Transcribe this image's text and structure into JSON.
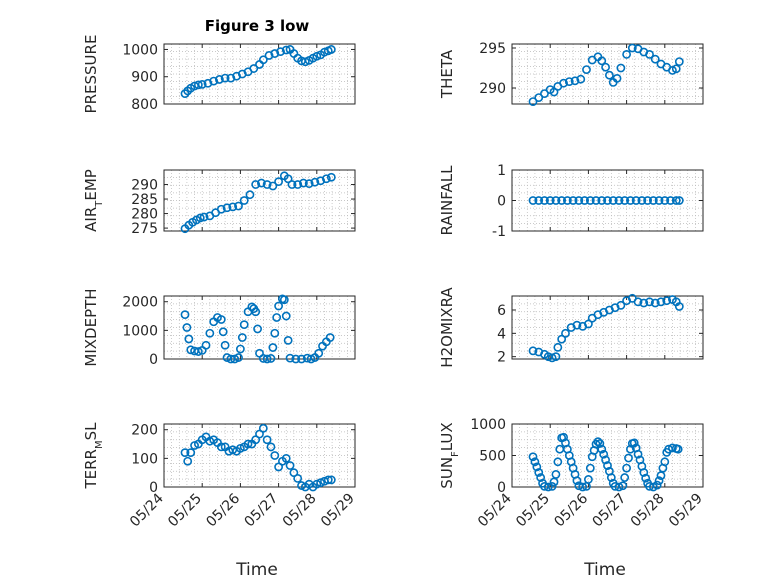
{
  "figure": {
    "title": "Figure 3 low",
    "xlabel": "Time"
  },
  "colors": {
    "marker": "#0072BD",
    "axis": "#262626",
    "grid": "#b8b8b8"
  },
  "xticks": [
    "05/24",
    "05/25",
    "05/26",
    "05/27",
    "05/28",
    "05/29"
  ],
  "chart_data": [
    {
      "type": "scatter",
      "ylabel": "PRESSURE",
      "ylim": [
        800,
        1020
      ],
      "yticks": [
        {
          "v": 800,
          "label": "800"
        },
        {
          "v": 900,
          "label": "900"
        },
        {
          "v": 1000,
          "label": "1000"
        }
      ],
      "xlim": [
        "05/24",
        "05/29"
      ],
      "grid": "on",
      "points": [
        [
          0.55,
          838
        ],
        [
          0.62,
          848
        ],
        [
          0.7,
          858
        ],
        [
          0.8,
          866
        ],
        [
          0.9,
          870
        ],
        [
          1.0,
          872
        ],
        [
          1.15,
          876
        ],
        [
          1.3,
          884
        ],
        [
          1.45,
          890
        ],
        [
          1.6,
          895
        ],
        [
          1.75,
          895
        ],
        [
          1.9,
          902
        ],
        [
          2.05,
          910
        ],
        [
          2.2,
          918
        ],
        [
          2.35,
          930
        ],
        [
          2.5,
          945
        ],
        [
          2.6,
          962
        ],
        [
          2.75,
          978
        ],
        [
          2.9,
          985
        ],
        [
          3.05,
          992
        ],
        [
          3.2,
          998
        ],
        [
          3.3,
          1000
        ],
        [
          3.4,
          985
        ],
        [
          3.5,
          968
        ],
        [
          3.6,
          958
        ],
        [
          3.7,
          955
        ],
        [
          3.8,
          960
        ],
        [
          3.9,
          968
        ],
        [
          4.0,
          975
        ],
        [
          4.1,
          980
        ],
        [
          4.2,
          990
        ],
        [
          4.3,
          995
        ],
        [
          4.38,
          1000
        ]
      ]
    },
    {
      "type": "scatter",
      "ylabel": "THETA",
      "ylim": [
        288,
        295.5
      ],
      "yticks": [
        {
          "v": 290,
          "label": "290"
        },
        {
          "v": 295,
          "label": "295"
        }
      ],
      "xlim": [
        "05/24",
        "05/29"
      ],
      "grid": "on",
      "points": [
        [
          0.55,
          288.3
        ],
        [
          0.7,
          288.8
        ],
        [
          0.85,
          289.3
        ],
        [
          1.0,
          289.8
        ],
        [
          1.1,
          289.5
        ],
        [
          1.2,
          290.2
        ],
        [
          1.35,
          290.6
        ],
        [
          1.5,
          290.8
        ],
        [
          1.65,
          290.9
        ],
        [
          1.8,
          291.1
        ],
        [
          1.95,
          292.3
        ],
        [
          2.1,
          293.5
        ],
        [
          2.25,
          293.9
        ],
        [
          2.35,
          293.4
        ],
        [
          2.45,
          292.6
        ],
        [
          2.55,
          291.6
        ],
        [
          2.65,
          290.7
        ],
        [
          2.75,
          291.2
        ],
        [
          2.85,
          292.5
        ],
        [
          3.0,
          294.2
        ],
        [
          3.15,
          295.0
        ],
        [
          3.3,
          294.9
        ],
        [
          3.45,
          294.5
        ],
        [
          3.6,
          294.2
        ],
        [
          3.75,
          293.6
        ],
        [
          3.9,
          293.0
        ],
        [
          4.05,
          292.6
        ],
        [
          4.2,
          292.2
        ],
        [
          4.3,
          292.4
        ],
        [
          4.38,
          293.3
        ]
      ]
    },
    {
      "type": "scatter",
      "ylabel": "AIR_TEMP",
      "ylim": [
        274,
        295
      ],
      "yticks": [
        {
          "v": 275,
          "label": "275"
        },
        {
          "v": 280,
          "label": "280"
        },
        {
          "v": 285,
          "label": "285"
        },
        {
          "v": 290,
          "label": "290"
        }
      ],
      "xlim": [
        "05/24",
        "05/29"
      ],
      "grid": "on",
      "points": [
        [
          0.55,
          274.8
        ],
        [
          0.65,
          276.0
        ],
        [
          0.75,
          277.0
        ],
        [
          0.85,
          277.8
        ],
        [
          0.95,
          278.5
        ],
        [
          1.05,
          278.8
        ],
        [
          1.2,
          279.2
        ],
        [
          1.35,
          280.3
        ],
        [
          1.5,
          281.5
        ],
        [
          1.65,
          282.0
        ],
        [
          1.8,
          282.3
        ],
        [
          1.95,
          282.6
        ],
        [
          2.1,
          284.5
        ],
        [
          2.25,
          286.5
        ],
        [
          2.4,
          290.0
        ],
        [
          2.55,
          290.5
        ],
        [
          2.7,
          290.0
        ],
        [
          2.85,
          289.5
        ],
        [
          3.0,
          291.0
        ],
        [
          3.15,
          293.0
        ],
        [
          3.25,
          292.0
        ],
        [
          3.35,
          290.0
        ],
        [
          3.5,
          290.0
        ],
        [
          3.65,
          290.5
        ],
        [
          3.8,
          290.3
        ],
        [
          3.95,
          290.8
        ],
        [
          4.1,
          291.3
        ],
        [
          4.25,
          292.0
        ],
        [
          4.38,
          292.5
        ]
      ]
    },
    {
      "type": "scatter",
      "ylabel": "RAINFALL",
      "ylim": [
        -1,
        1
      ],
      "yticks": [
        {
          "v": -1,
          "label": "-1"
        },
        {
          "v": 0,
          "label": "0"
        },
        {
          "v": 1,
          "label": "1"
        }
      ],
      "xlim": [
        "05/24",
        "05/29"
      ],
      "grid": "on",
      "points": [
        [
          0.55,
          0
        ],
        [
          0.7,
          0
        ],
        [
          0.85,
          0
        ],
        [
          1.0,
          0
        ],
        [
          1.15,
          0
        ],
        [
          1.3,
          0
        ],
        [
          1.45,
          0
        ],
        [
          1.6,
          0
        ],
        [
          1.75,
          0
        ],
        [
          1.9,
          0
        ],
        [
          2.05,
          0
        ],
        [
          2.2,
          0
        ],
        [
          2.35,
          0
        ],
        [
          2.5,
          0
        ],
        [
          2.65,
          0
        ],
        [
          2.8,
          0
        ],
        [
          2.95,
          0
        ],
        [
          3.1,
          0
        ],
        [
          3.25,
          0
        ],
        [
          3.4,
          0
        ],
        [
          3.55,
          0
        ],
        [
          3.7,
          0
        ],
        [
          3.85,
          0
        ],
        [
          4.0,
          0
        ],
        [
          4.15,
          0
        ],
        [
          4.3,
          0
        ],
        [
          4.38,
          0
        ]
      ]
    },
    {
      "type": "scatter",
      "ylabel": "MIXDEPTH",
      "ylim": [
        0,
        2200
      ],
      "yticks": [
        {
          "v": 0,
          "label": "0"
        },
        {
          "v": 1000,
          "label": "1000"
        },
        {
          "v": 2000,
          "label": "2000"
        }
      ],
      "xlim": [
        "05/24",
        "05/29"
      ],
      "grid": "on",
      "points": [
        [
          0.55,
          1550
        ],
        [
          0.6,
          1100
        ],
        [
          0.65,
          700
        ],
        [
          0.7,
          320
        ],
        [
          0.8,
          280
        ],
        [
          0.9,
          260
        ],
        [
          1.0,
          300
        ],
        [
          1.1,
          480
        ],
        [
          1.2,
          900
        ],
        [
          1.3,
          1300
        ],
        [
          1.4,
          1450
        ],
        [
          1.5,
          1380
        ],
        [
          1.55,
          950
        ],
        [
          1.6,
          480
        ],
        [
          1.65,
          50
        ],
        [
          1.75,
          0
        ],
        [
          1.85,
          0
        ],
        [
          1.95,
          50
        ],
        [
          2.0,
          350
        ],
        [
          2.05,
          750
        ],
        [
          2.1,
          1200
        ],
        [
          2.2,
          1650
        ],
        [
          2.3,
          1820
        ],
        [
          2.35,
          1760
        ],
        [
          2.4,
          1650
        ],
        [
          2.45,
          1050
        ],
        [
          2.5,
          200
        ],
        [
          2.6,
          20
        ],
        [
          2.7,
          0
        ],
        [
          2.8,
          20
        ],
        [
          2.85,
          400
        ],
        [
          2.9,
          900
        ],
        [
          2.95,
          1450
        ],
        [
          3.0,
          1850
        ],
        [
          3.1,
          2100
        ],
        [
          3.15,
          2070
        ],
        [
          3.2,
          1500
        ],
        [
          3.25,
          650
        ],
        [
          3.3,
          30
        ],
        [
          3.45,
          0
        ],
        [
          3.6,
          0
        ],
        [
          3.75,
          30
        ],
        [
          3.85,
          0
        ],
        [
          3.95,
          50
        ],
        [
          4.05,
          200
        ],
        [
          4.15,
          450
        ],
        [
          4.25,
          600
        ],
        [
          4.35,
          750
        ]
      ]
    },
    {
      "type": "scatter",
      "ylabel": "H2OMIXRA",
      "ylim": [
        1.8,
        7.2
      ],
      "yticks": [
        {
          "v": 2,
          "label": "2"
        },
        {
          "v": 4,
          "label": "4"
        },
        {
          "v": 6,
          "label": "6"
        }
      ],
      "xlim": [
        "05/24",
        "05/29"
      ],
      "grid": "on",
      "points": [
        [
          0.55,
          2.5
        ],
        [
          0.7,
          2.4
        ],
        [
          0.85,
          2.2
        ],
        [
          0.95,
          2.0
        ],
        [
          1.05,
          1.9
        ],
        [
          1.15,
          2.0
        ],
        [
          1.2,
          2.8
        ],
        [
          1.3,
          3.5
        ],
        [
          1.4,
          4.0
        ],
        [
          1.55,
          4.5
        ],
        [
          1.7,
          4.7
        ],
        [
          1.85,
          4.6
        ],
        [
          2.0,
          4.8
        ],
        [
          2.1,
          5.3
        ],
        [
          2.25,
          5.6
        ],
        [
          2.4,
          5.8
        ],
        [
          2.55,
          6.0
        ],
        [
          2.7,
          6.2
        ],
        [
          2.85,
          6.4
        ],
        [
          3.0,
          6.8
        ],
        [
          3.15,
          7.0
        ],
        [
          3.3,
          6.7
        ],
        [
          3.45,
          6.6
        ],
        [
          3.6,
          6.7
        ],
        [
          3.75,
          6.6
        ],
        [
          3.9,
          6.7
        ],
        [
          4.05,
          6.8
        ],
        [
          4.2,
          6.9
        ],
        [
          4.3,
          6.7
        ],
        [
          4.38,
          6.3
        ]
      ]
    },
    {
      "type": "scatter",
      "ylabel": "TERR_MSL",
      "ylim": [
        0,
        220
      ],
      "yticks": [
        {
          "v": 0,
          "label": "0"
        },
        {
          "v": 100,
          "label": "100"
        },
        {
          "v": 200,
          "label": "200"
        }
      ],
      "xlim": [
        "05/24",
        "05/29"
      ],
      "grid": "on",
      "points": [
        [
          0.55,
          120
        ],
        [
          0.62,
          90
        ],
        [
          0.7,
          120
        ],
        [
          0.8,
          145
        ],
        [
          0.9,
          150
        ],
        [
          1.0,
          165
        ],
        [
          1.1,
          175
        ],
        [
          1.2,
          160
        ],
        [
          1.3,
          165
        ],
        [
          1.4,
          155
        ],
        [
          1.5,
          140
        ],
        [
          1.6,
          140
        ],
        [
          1.7,
          125
        ],
        [
          1.8,
          130
        ],
        [
          1.9,
          125
        ],
        [
          2.0,
          135
        ],
        [
          2.1,
          140
        ],
        [
          2.2,
          150
        ],
        [
          2.3,
          150
        ],
        [
          2.4,
          165
        ],
        [
          2.5,
          185
        ],
        [
          2.6,
          205
        ],
        [
          2.7,
          165
        ],
        [
          2.8,
          140
        ],
        [
          2.9,
          110
        ],
        [
          3.0,
          70
        ],
        [
          3.1,
          90
        ],
        [
          3.2,
          100
        ],
        [
          3.3,
          75
        ],
        [
          3.4,
          50
        ],
        [
          3.5,
          30
        ],
        [
          3.6,
          5
        ],
        [
          3.7,
          0
        ],
        [
          3.8,
          10
        ],
        [
          3.9,
          0
        ],
        [
          4.0,
          10
        ],
        [
          4.1,
          15
        ],
        [
          4.2,
          20
        ],
        [
          4.3,
          25
        ],
        [
          4.38,
          25
        ]
      ]
    },
    {
      "type": "scatter",
      "ylabel": "SUN_FLUX",
      "ylim": [
        0,
        1000
      ],
      "yticks": [
        {
          "v": 0,
          "label": "0"
        },
        {
          "v": 500,
          "label": "500"
        },
        {
          "v": 1000,
          "label": "1000"
        }
      ],
      "xlim": [
        "05/24",
        "05/29"
      ],
      "grid": "on",
      "points": [
        [
          0.55,
          480
        ],
        [
          0.6,
          400
        ],
        [
          0.65,
          320
        ],
        [
          0.7,
          230
        ],
        [
          0.75,
          150
        ],
        [
          0.8,
          60
        ],
        [
          0.85,
          10
        ],
        [
          0.95,
          0
        ],
        [
          1.05,
          10
        ],
        [
          1.1,
          80
        ],
        [
          1.15,
          200
        ],
        [
          1.2,
          400
        ],
        [
          1.25,
          600
        ],
        [
          1.3,
          780
        ],
        [
          1.35,
          790
        ],
        [
          1.4,
          700
        ],
        [
          1.45,
          600
        ],
        [
          1.5,
          500
        ],
        [
          1.55,
          400
        ],
        [
          1.6,
          300
        ],
        [
          1.65,
          200
        ],
        [
          1.7,
          100
        ],
        [
          1.75,
          20
        ],
        [
          1.85,
          0
        ],
        [
          1.95,
          10
        ],
        [
          2.0,
          120
        ],
        [
          2.05,
          300
        ],
        [
          2.1,
          480
        ],
        [
          2.15,
          580
        ],
        [
          2.2,
          680
        ],
        [
          2.25,
          720
        ],
        [
          2.3,
          690
        ],
        [
          2.35,
          600
        ],
        [
          2.4,
          520
        ],
        [
          2.45,
          430
        ],
        [
          2.5,
          340
        ],
        [
          2.55,
          250
        ],
        [
          2.6,
          150
        ],
        [
          2.65,
          60
        ],
        [
          2.7,
          10
        ],
        [
          2.8,
          0
        ],
        [
          2.9,
          20
        ],
        [
          2.95,
          150
        ],
        [
          3.0,
          300
        ],
        [
          3.05,
          460
        ],
        [
          3.1,
          600
        ],
        [
          3.15,
          690
        ],
        [
          3.2,
          700
        ],
        [
          3.25,
          620
        ],
        [
          3.3,
          520
        ],
        [
          3.35,
          430
        ],
        [
          3.4,
          330
        ],
        [
          3.45,
          230
        ],
        [
          3.5,
          140
        ],
        [
          3.55,
          60
        ],
        [
          3.6,
          10
        ],
        [
          3.7,
          0
        ],
        [
          3.8,
          30
        ],
        [
          3.85,
          100
        ],
        [
          3.9,
          180
        ],
        [
          3.95,
          300
        ],
        [
          4.0,
          400
        ],
        [
          4.05,
          550
        ],
        [
          4.1,
          600
        ],
        [
          4.2,
          620
        ],
        [
          4.3,
          610
        ],
        [
          4.35,
          600
        ]
      ]
    }
  ],
  "ylabel_parts": [
    {
      "main": "PRESSURE",
      "sub": ""
    },
    {
      "main": "THETA",
      "sub": ""
    },
    {
      "pre": "AIR",
      "sub": "T",
      "post": "EMP"
    },
    {
      "main": "RAINFALL",
      "sub": ""
    },
    {
      "main": "MIXDEPTH",
      "sub": ""
    },
    {
      "main": "H2OMIXRA",
      "sub": ""
    },
    {
      "pre": "TERR",
      "sub": "M",
      "post": "SL"
    },
    {
      "pre": "SUN",
      "sub": "F",
      "post": "LUX"
    }
  ]
}
